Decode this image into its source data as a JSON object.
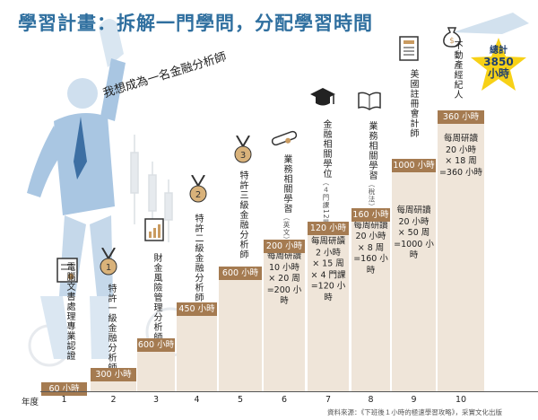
{
  "title": "學習計畫：拆解一門學問，分配學習時間",
  "quote": "我想成為一名金融分析師",
  "axis": {
    "year_label": "年度",
    "ticks": [
      "1",
      "2",
      "3",
      "4",
      "5",
      "6",
      "7",
      "8",
      "9",
      "10"
    ]
  },
  "total": {
    "label": "總計",
    "value": "3850",
    "unit": "小時"
  },
  "source": "資料來源：《下班後１小時的極速學習攻略》，采實文化出版",
  "steps": [
    {
      "hours": "60 小時",
      "name": "電腦文書處理專業認證",
      "icon": "certificate-icon"
    },
    {
      "hours": "300 小時",
      "name": "特許一級金融分析師",
      "icon": "medal-1-icon"
    },
    {
      "hours": "600 小時",
      "name": "財金風險管理分析師",
      "icon": "report-chart-icon"
    },
    {
      "hours": "450 小時",
      "name": "特許二級金融分析師",
      "icon": "medal-2-icon"
    },
    {
      "hours": "600 小時",
      "name": "特許三級金融分析師",
      "icon": "medal-3-icon"
    },
    {
      "hours": "200 小時",
      "name": "業務相關學習",
      "sub": "（英文）",
      "icon": "diploma-scroll-icon",
      "detail": "每周研讀\n10 小時\n× 20 周\n=200 小時"
    },
    {
      "hours": "120 小時",
      "name": "金融相關學位",
      "sub": "（４門課12學分）",
      "icon": "graduation-cap-icon",
      "detail": "每周研讀\n2 小時\n× 15 周\n× 4 門課\n=120 小時"
    },
    {
      "hours": "160 小時",
      "name": "業務相關學習",
      "sub": "（稅法）",
      "icon": "open-book-icon",
      "detail": "每周研讀\n20 小時\n× 8 周\n=160 小時"
    },
    {
      "hours": "1000 小時",
      "name": "美國註冊會計師",
      "icon": "document-icon",
      "detail": "每周研讀\n20 小時\n× 50 周\n=1000 小時"
    },
    {
      "hours": "360 小時",
      "name": "不動產經紀人",
      "icon": "money-bag-icon",
      "detail": "每周研讀\n20 小時\n× 18 周\n=360 小時"
    }
  ],
  "colors": {
    "title": "#2f6f9f",
    "label_bg": "#a57b51",
    "box_bg": "#efe5d9",
    "star": "#f7d117"
  }
}
